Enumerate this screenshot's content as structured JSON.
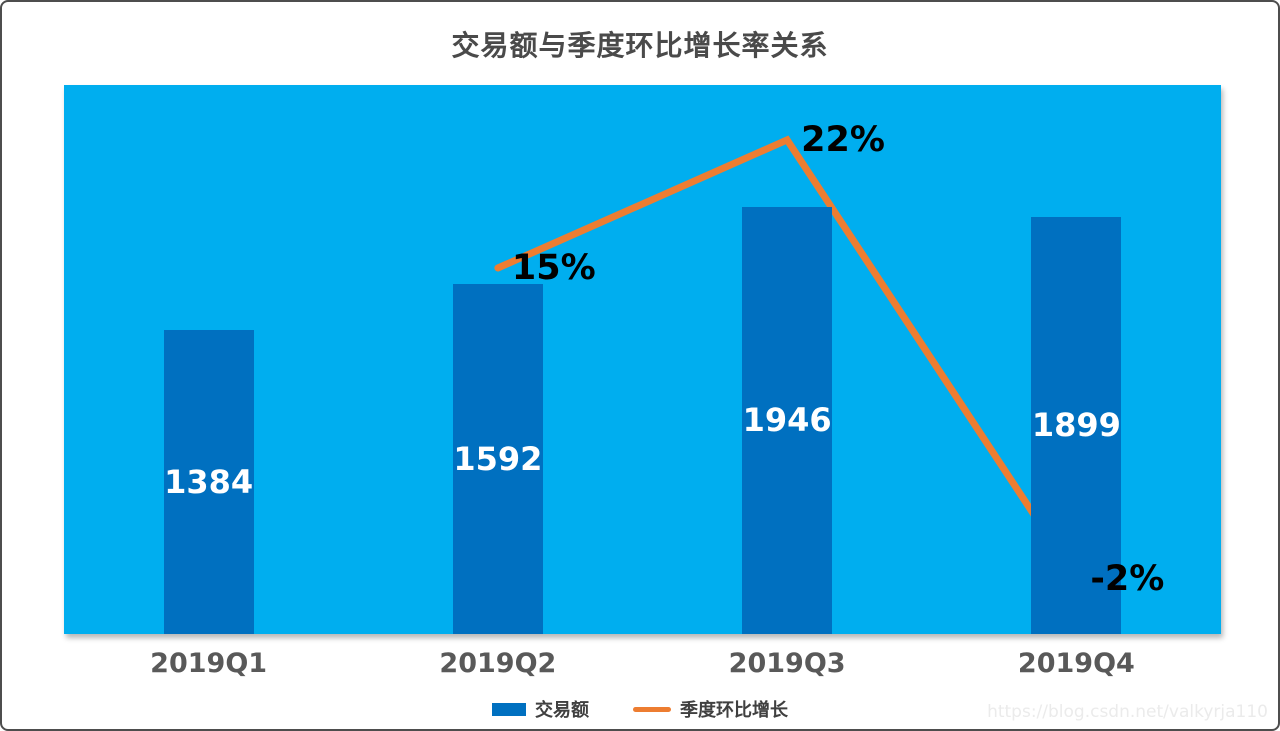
{
  "title": "交易额与季度环比增长率关系",
  "watermark": "https://blog.csdn.net/valkyrja110",
  "colors": {
    "plot_background": "#00AEEF",
    "bar": "#0070C0",
    "line": "#ED7D31",
    "bar_value_label": "#FFFFFF",
    "line_value_label": "#000000",
    "axis_label": "#595959",
    "title": "#4A4A4A"
  },
  "legend": {
    "items": [
      {
        "label": "交易额",
        "type": "bar",
        "color": "#0070C0"
      },
      {
        "label": "季度环比增长",
        "type": "line",
        "color": "#ED7D31"
      }
    ]
  },
  "chart_data": {
    "type": "combo",
    "title": "交易额与季度环比增长率关系",
    "xlabel": "",
    "ylabel": "",
    "grid": false,
    "legend_position": "bottom",
    "categories": [
      "2019Q1",
      "2019Q2",
      "2019Q3",
      "2019Q4"
    ],
    "series": [
      {
        "name": "交易额",
        "type": "bar",
        "values": [
          1384,
          1592,
          1946,
          1899
        ],
        "labels": [
          "1384",
          "1592",
          "1946",
          "1899"
        ],
        "axis": {
          "min": 0,
          "max": 2500
        }
      },
      {
        "name": "季度环比增长",
        "type": "line",
        "values": [
          null,
          15,
          22,
          -2
        ],
        "labels": [
          null,
          "15%",
          "22%",
          "-2%"
        ],
        "axis": {
          "min": -5,
          "max": 25
        }
      }
    ]
  }
}
